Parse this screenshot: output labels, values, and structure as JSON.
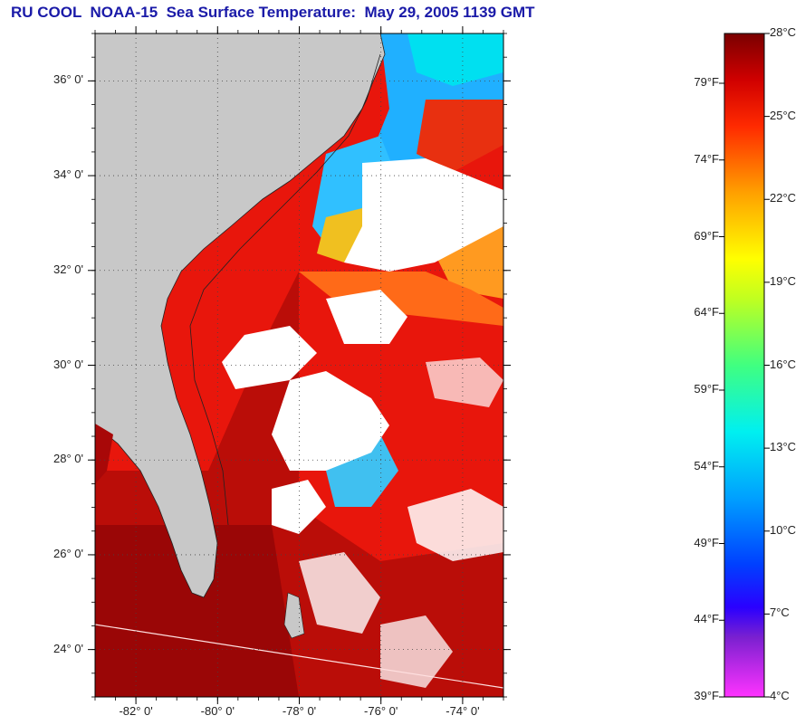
{
  "title": "RU COOL  NOAA-15  Sea Surface Temperature:  May 29, 2005 1139 GMT",
  "map": {
    "lat_ticks": [
      {
        "value": 36,
        "label": "36° 0'"
      },
      {
        "value": 34,
        "label": "34° 0'"
      },
      {
        "value": 32,
        "label": "32° 0'"
      },
      {
        "value": 30,
        "label": "30° 0'"
      },
      {
        "value": 28,
        "label": "28° 0'"
      },
      {
        "value": 26,
        "label": "26° 0'"
      },
      {
        "value": 24,
        "label": "24° 0'"
      }
    ],
    "lon_ticks": [
      {
        "value": -82,
        "label": "-82° 0'"
      },
      {
        "value": -80,
        "label": "-80° 0'"
      },
      {
        "value": -78,
        "label": "-78° 0'"
      },
      {
        "value": -76,
        "label": "-76° 0'"
      },
      {
        "value": -74,
        "label": "-74° 0'"
      }
    ],
    "lat_range": [
      23,
      37
    ],
    "lon_range": [
      -83,
      -73
    ],
    "colors": {
      "land": "#c8c8c8",
      "cloud": "#ffffff",
      "warm_sea": "#e8160c",
      "hot_sea": "#a80808",
      "shelf": "#f23a16"
    }
  },
  "colorbar": {
    "celsius": [
      "28°C",
      "25°C",
      "22°C",
      "19°C",
      "16°C",
      "13°C",
      "10°C",
      "7°C",
      "4°C"
    ],
    "fahrenheit": [
      "79°F",
      "74°F",
      "69°F",
      "64°F",
      "59°F",
      "54°F",
      "49°F",
      "44°F",
      "39°F"
    ],
    "colors": [
      "#ff33ff",
      "#2a00ff",
      "#0050ff",
      "#00b0ff",
      "#00ffe0",
      "#50ff40",
      "#ffff00",
      "#ff9900",
      "#ff2a00",
      "#c00000",
      "#7a0000"
    ]
  }
}
